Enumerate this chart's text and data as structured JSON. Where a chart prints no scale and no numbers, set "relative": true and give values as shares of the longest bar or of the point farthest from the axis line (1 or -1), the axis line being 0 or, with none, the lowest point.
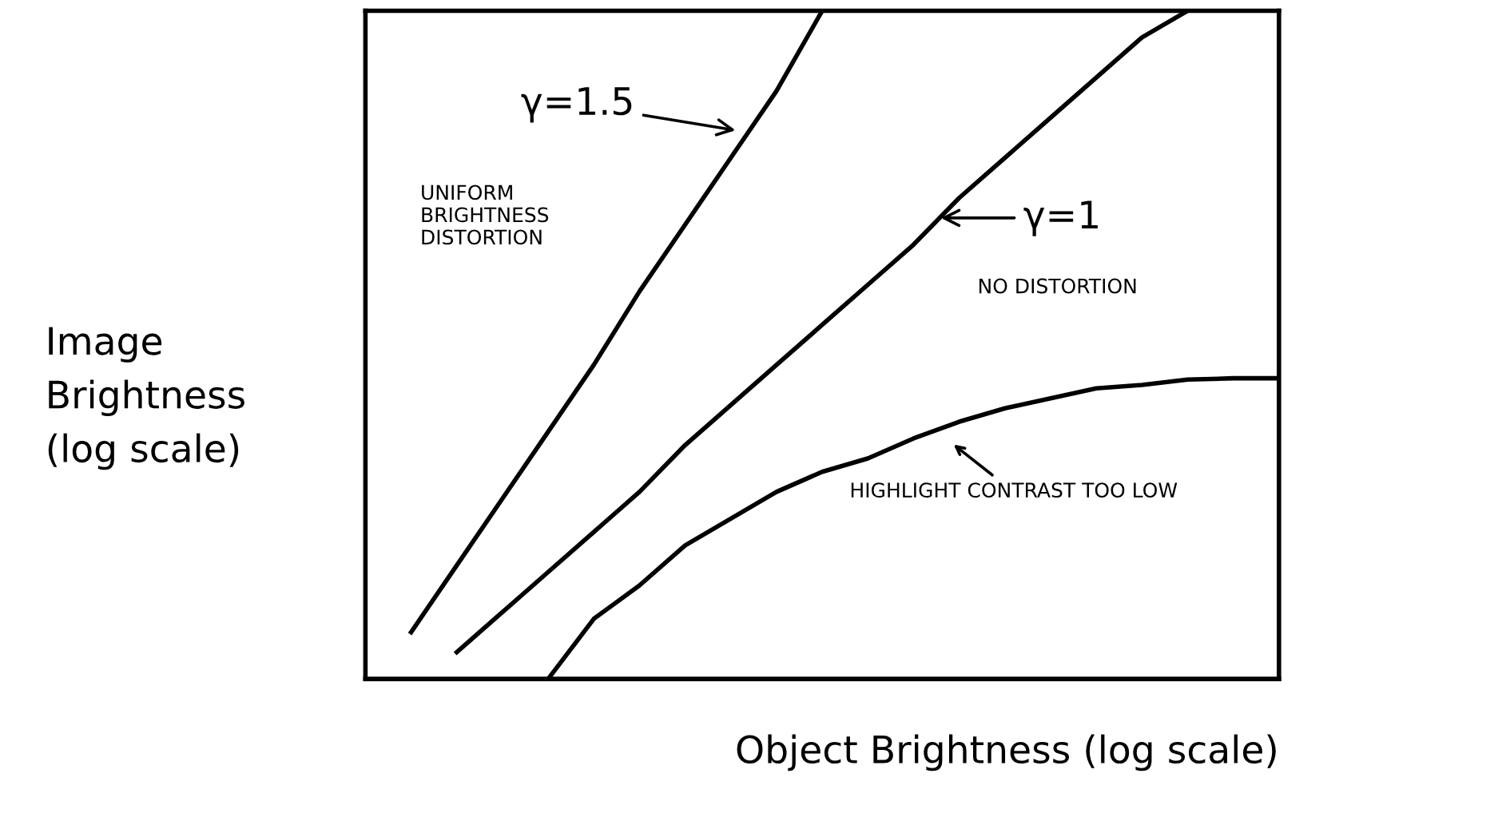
{
  "chart_data": {
    "type": "line",
    "relative": true,
    "tick_labels": false,
    "grid": false,
    "marker": "none",
    "line_style": "solid",
    "xlabel": "Object Brightness (log scale)",
    "ylabel": "Image Brightness (log scale)",
    "categories": [
      null,
      null,
      null,
      null,
      null,
      null,
      null,
      null,
      null,
      null,
      null,
      null,
      null,
      null,
      null,
      null,
      null,
      null,
      null,
      null,
      null
    ],
    "series": [
      {
        "color": "#000000",
        "values": [
          null,
          0.07,
          0.17,
          0.27,
          0.37,
          0.47,
          0.58,
          0.68,
          0.78,
          0.88,
          1.0,
          null,
          null,
          null,
          null,
          null,
          null,
          null,
          null,
          null,
          null
        ]
      },
      {
        "color": "#000000",
        "values": [
          null,
          null,
          0.04,
          0.1,
          0.16,
          0.22,
          0.28,
          0.35,
          0.41,
          0.47,
          0.53,
          0.59,
          0.65,
          0.72,
          0.78,
          0.84,
          0.9,
          0.96,
          1.0,
          null,
          null
        ]
      },
      {
        "color": "#000000",
        "values": [
          null,
          null,
          null,
          null,
          0.0,
          0.09,
          0.14,
          0.2,
          0.24,
          0.28,
          0.31,
          0.33,
          0.36,
          0.385,
          0.405,
          0.42,
          0.435,
          0.44,
          0.448,
          0.45,
          0.45
        ]
      }
    ],
    "annotations": [
      "γ=1.5",
      "UNIFORM BRIGHTNESS DISTORTION",
      "γ=1",
      "NO DISTORTION",
      "HIGHLIGHT CONTRAST TOO LOW"
    ]
  }
}
